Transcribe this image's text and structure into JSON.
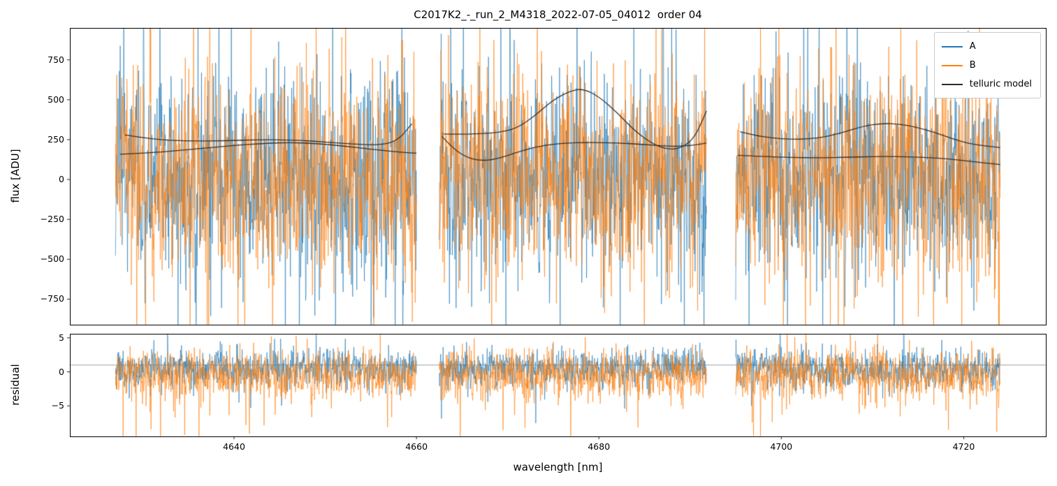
{
  "chart_data": {
    "type": "line",
    "title": "C2017K2_-_run_2_M4318_2022-07-05_04012  order 04",
    "xlabel": "wavelength [nm]",
    "xlim": [
      4622,
      4729
    ],
    "xticks": [
      4640,
      4660,
      4680,
      4700,
      4720
    ],
    "background": "#ffffff",
    "spine_color": "#000000",
    "panels": [
      {
        "name": "flux",
        "ylabel": "flux [ADU]",
        "ylim": [
          -910,
          950
        ],
        "yticks": [
          750,
          500,
          250,
          0,
          -250,
          -500,
          -750
        ],
        "grid": false
      },
      {
        "name": "residual",
        "ylabel": "residual",
        "ylim": [
          -9.5,
          5.6
        ],
        "yticks": [
          5,
          0,
          -5
        ],
        "hline": 1.0,
        "hline_color": "#9e9e9e",
        "grid": false
      }
    ],
    "legend": {
      "position": "upper right",
      "entries": [
        {
          "label": "A",
          "color": "#1f77b4"
        },
        {
          "label": "B",
          "color": "#ff7f0e"
        },
        {
          "label": "telluric model",
          "color": "#2b2b2b"
        }
      ]
    },
    "segments": [
      {
        "x_start": 4627.0,
        "x_end": 4660.0
      },
      {
        "x_start": 4662.5,
        "x_end": 4691.8
      },
      {
        "x_start": 4695.0,
        "x_end": 4724.0
      }
    ],
    "flux_series": [
      {
        "name": "A",
        "color": "#1f77b4",
        "opacity": 0.9,
        "noise": {
          "mean": 20,
          "std": 290,
          "corr": 0.25,
          "spike_frac": 0.07,
          "spike_std": 680,
          "neg_bias": 0.5,
          "seed": 7
        }
      },
      {
        "name": "B",
        "color": "#ff7f0e",
        "opacity": 0.9,
        "noise": {
          "mean": 0,
          "std": 300,
          "corr": 0.25,
          "spike_frac": 0.08,
          "spike_std": 700,
          "neg_bias": 0.5,
          "seed": 42
        }
      }
    ],
    "residual_series": [
      {
        "name": "A",
        "color": "#1f77b4",
        "opacity": 0.9,
        "noise": {
          "mean": 0.5,
          "std": 1.3,
          "corr": 0.2,
          "spike_frac": 0.03,
          "spike_std": 3.5,
          "neg_bias": 0.5,
          "seed": 101
        }
      },
      {
        "name": "B",
        "color": "#ff7f0e",
        "opacity": 0.9,
        "noise": {
          "mean": -0.5,
          "std": 1.7,
          "corr": 0.2,
          "spike_frac": 0.06,
          "spike_std": 4.5,
          "neg_bias": 0.75,
          "seed": 202
        }
      }
    ],
    "telluric_model": {
      "label": "telluric model",
      "color": "#2b2b2b",
      "curves": [
        [
          [
            [
              4628.0,
              280
            ],
            [
              4631,
              252
            ],
            [
              4635,
              240
            ],
            [
              4639,
              243
            ],
            [
              4643,
              250
            ],
            [
              4647,
              247
            ],
            [
              4650,
              235
            ],
            [
              4653,
              222
            ],
            [
              4656,
              215
            ],
            [
              4658,
              245
            ],
            [
              4659.5,
              350
            ]
          ],
          [
            [
              4663,
              285
            ],
            [
              4665,
              283
            ],
            [
              4667,
              287
            ],
            [
              4669,
              295
            ],
            [
              4671,
              320
            ],
            [
              4673,
              400
            ],
            [
              4675,
              500
            ],
            [
              4677,
              558
            ],
            [
              4678.3,
              568
            ],
            [
              4680,
              520
            ],
            [
              4682,
              420
            ],
            [
              4684,
              300
            ],
            [
              4686,
              220
            ],
            [
              4687.5,
              188
            ],
            [
              4689,
              195
            ],
            [
              4690.5,
              260
            ],
            [
              4691.8,
              430
            ]
          ],
          [
            [
              4695.5,
              300
            ],
            [
              4697,
              278
            ],
            [
              4699,
              260
            ],
            [
              4701,
              252
            ],
            [
              4703,
              254
            ],
            [
              4705,
              268
            ],
            [
              4707,
              300
            ],
            [
              4709,
              335
            ],
            [
              4711,
              352
            ],
            [
              4713,
              348
            ],
            [
              4715,
              325
            ],
            [
              4717,
              292
            ],
            [
              4719,
              250
            ],
            [
              4721,
              220
            ],
            [
              4724,
              200
            ]
          ]
        ],
        [
          [
            [
              4627.5,
              158
            ],
            [
              4631,
              168
            ],
            [
              4634,
              182
            ],
            [
              4637,
              198
            ],
            [
              4640,
              213
            ],
            [
              4643,
              226
            ],
            [
              4646,
              232
            ],
            [
              4649,
              226
            ],
            [
              4652,
              210
            ],
            [
              4655,
              190
            ],
            [
              4658,
              172
            ],
            [
              4660,
              165
            ]
          ],
          [
            [
              4662.8,
              270
            ],
            [
              4664,
              195
            ],
            [
              4665.5,
              138
            ],
            [
              4667,
              118
            ],
            [
              4668.5,
              125
            ],
            [
              4670,
              150
            ],
            [
              4671.5,
              180
            ],
            [
              4673.5,
              210
            ],
            [
              4676,
              228
            ],
            [
              4679,
              233
            ],
            [
              4682,
              229
            ],
            [
              4685,
              220
            ],
            [
              4688,
              207
            ],
            [
              4690,
              212
            ],
            [
              4691.8,
              228
            ]
          ],
          [
            [
              4695.2,
              152
            ],
            [
              4698,
              144
            ],
            [
              4701,
              138
            ],
            [
              4704,
              136
            ],
            [
              4707,
              139
            ],
            [
              4710,
              144
            ],
            [
              4713,
              144
            ],
            [
              4716,
              138
            ],
            [
              4718.5,
              128
            ],
            [
              4721,
              112
            ],
            [
              4724,
              94
            ]
          ]
        ]
      ]
    }
  }
}
